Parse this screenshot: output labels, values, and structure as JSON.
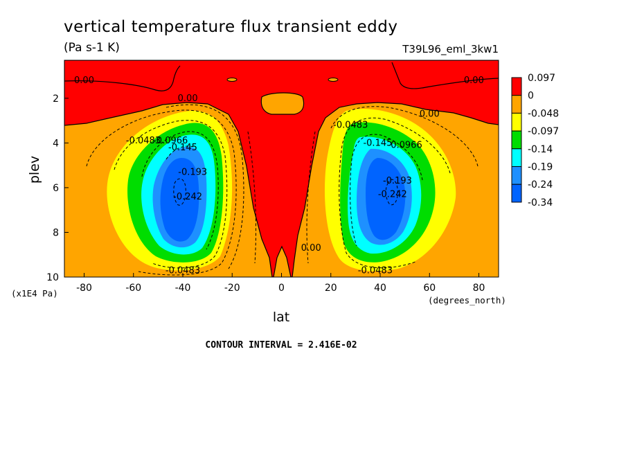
{
  "chart_data": {
    "type": "contour",
    "title": "vertical temperature flux transient eddy",
    "units": "(Pa s-1 K)",
    "run_label": "T39L96_eml_3kw1",
    "xlabel": "lat",
    "x_units": "(degrees_north)",
    "ylabel": "plev",
    "y_units": "(x1E4 Pa)",
    "x_ticks": [
      "-80",
      "-60",
      "-40",
      "-20",
      "0",
      "20",
      "40",
      "60",
      "80"
    ],
    "y_ticks": [
      "2",
      "4",
      "6",
      "8",
      "10"
    ],
    "xlim": [
      -88,
      88
    ],
    "ylim": [
      10,
      0.3
    ],
    "y_inverted": true,
    "contour_interval": "CONTOUR INTERVAL = 2.416E-02",
    "colorbar": {
      "labels": [
        "0.097",
        "0",
        "-0.048",
        "-0.097",
        "-0.14",
        "-0.19",
        "-0.24",
        "-0.34"
      ],
      "colors": [
        "#ff0000",
        "#ffa500",
        "#ffff00",
        "#00dd00",
        "#00ffff",
        "#1e90ff",
        "#0064ff"
      ]
    },
    "contour_labels": [
      {
        "text": "0.00",
        "lat": -80,
        "plev": 1.2
      },
      {
        "text": "0.00",
        "lat": -38,
        "plev": 2.0
      },
      {
        "text": "0.00",
        "lat": 78,
        "plev": 1.2
      },
      {
        "text": "0.00",
        "lat": 60,
        "plev": 2.7
      },
      {
        "text": "0.00",
        "lat": 12,
        "plev": 8.7
      },
      {
        "text": "-0.0483",
        "lat": -56,
        "plev": 3.9
      },
      {
        "text": "-0.0966",
        "lat": -45,
        "plev": 3.9
      },
      {
        "text": "-0.145",
        "lat": -40,
        "plev": 4.2
      },
      {
        "text": "-0.193",
        "lat": -36,
        "plev": 5.3
      },
      {
        "text": "-0.242",
        "lat": -38,
        "plev": 6.4
      },
      {
        "text": "-0.0483",
        "lat": -40,
        "plev": 9.7
      },
      {
        "text": "-0.0483",
        "lat": 28,
        "plev": 3.2
      },
      {
        "text": "-0.145",
        "lat": 39,
        "plev": 4.0
      },
      {
        "text": "-0.0966",
        "lat": 50,
        "plev": 4.1
      },
      {
        "text": "-0.193",
        "lat": 47,
        "plev": 5.7
      },
      {
        "text": "-0.242",
        "lat": 45,
        "plev": 6.3
      },
      {
        "text": "-0.0483",
        "lat": 38,
        "plev": 9.7
      }
    ]
  }
}
